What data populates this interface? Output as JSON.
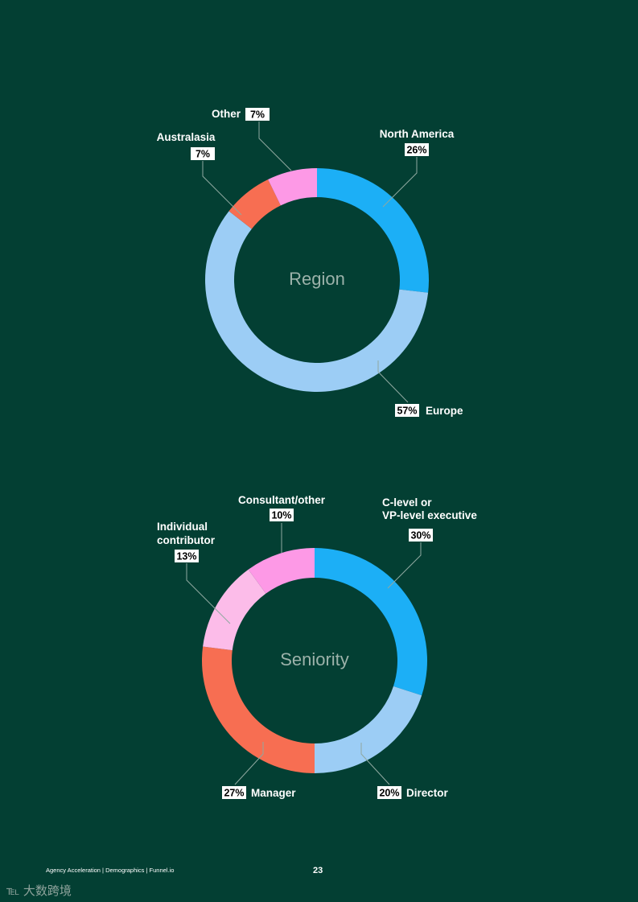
{
  "chart_data": [
    {
      "type": "pie",
      "title": "Region",
      "categories": [
        "North America",
        "Europe",
        "Australasia",
        "Other"
      ],
      "values": [
        26,
        57,
        7,
        7
      ],
      "value_labels": [
        "26%",
        "57%",
        "7%",
        "7%"
      ],
      "colors": [
        "#1caff6",
        "#9ccdf5",
        "#f76e52",
        "#fd99e6"
      ]
    },
    {
      "type": "pie",
      "title": "Seniority",
      "categories": [
        "C-level or VP-level executive",
        "Director",
        "Manager",
        "Individual contributor",
        "Consultant/other"
      ],
      "label_lines": [
        [
          "C-level or",
          "VP-level executive"
        ],
        [
          "Director"
        ],
        [
          "Manager"
        ],
        [
          "Individual",
          "contributor"
        ],
        [
          "Consultant/other"
        ]
      ],
      "values": [
        30,
        20,
        27,
        13,
        10
      ],
      "value_labels": [
        "30%",
        "20%",
        "27%",
        "13%",
        "10%"
      ],
      "colors": [
        "#1caff6",
        "#9ccdf5",
        "#f76e52",
        "#fcbce9",
        "#fd99e6"
      ]
    }
  ],
  "footer": {
    "left_text": "Agency  Acceleration  |  Demographics  |  Funnel.io",
    "page_number": "23"
  },
  "watermark": "℡ 大数跨境"
}
